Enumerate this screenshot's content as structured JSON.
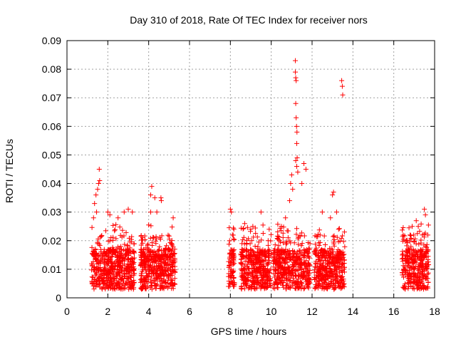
{
  "chart_data": {
    "type": "scatter",
    "title": "Day 310 of 2018, Rate Of TEC Index for receiver nors",
    "xlabel": "GPS time / hours",
    "ylabel": "ROTI / TECUs",
    "xlim": [
      0,
      18
    ],
    "ylim": [
      0,
      0.09
    ],
    "xticks": [
      0,
      2,
      4,
      6,
      8,
      10,
      12,
      14,
      16,
      18
    ],
    "yticks": [
      0,
      0.01,
      0.02,
      0.03,
      0.04,
      0.05,
      0.06,
      0.07,
      0.08,
      0.09
    ],
    "grid": true,
    "marker": "+",
    "color": "#ff0000",
    "clusters": [
      {
        "x_range": [
          1.2,
          3.3
        ],
        "y_range": [
          0.002,
          0.045
        ]
      },
      {
        "x_range": [
          3.6,
          5.3
        ],
        "y_range": [
          0.002,
          0.039
        ]
      },
      {
        "x_range": [
          7.9,
          8.2
        ],
        "y_range": [
          0.004,
          0.031
        ]
      },
      {
        "x_range": [
          8.5,
          10.0
        ],
        "y_range": [
          0.002,
          0.03
        ]
      },
      {
        "x_range": [
          10.1,
          11.9
        ],
        "y_range": [
          0.003,
          0.083
        ]
      },
      {
        "x_range": [
          12.1,
          13.6
        ],
        "y_range": [
          0.003,
          0.076
        ]
      },
      {
        "x_range": [
          16.4,
          17.7
        ],
        "y_range": [
          0.001,
          0.031
        ]
      }
    ],
    "points": [
      [
        1.35,
        0.033
      ],
      [
        1.42,
        0.036
      ],
      [
        1.5,
        0.038
      ],
      [
        1.55,
        0.04
      ],
      [
        1.6,
        0.041
      ],
      [
        1.58,
        0.045
      ],
      [
        1.45,
        0.03
      ],
      [
        1.3,
        0.028
      ],
      [
        2.0,
        0.03
      ],
      [
        2.1,
        0.029
      ],
      [
        2.8,
        0.03
      ],
      [
        3.0,
        0.031
      ],
      [
        3.2,
        0.03
      ],
      [
        2.5,
        0.028
      ],
      [
        4.1,
        0.036
      ],
      [
        4.15,
        0.039
      ],
      [
        4.3,
        0.035
      ],
      [
        4.6,
        0.035
      ],
      [
        4.62,
        0.034
      ],
      [
        4.1,
        0.03
      ],
      [
        4.4,
        0.03
      ],
      [
        5.2,
        0.028
      ],
      [
        8.0,
        0.031
      ],
      [
        8.05,
        0.03
      ],
      [
        8.1,
        0.022
      ],
      [
        8.7,
        0.026
      ],
      [
        9.0,
        0.024
      ],
      [
        9.1,
        0.025
      ],
      [
        9.5,
        0.03
      ],
      [
        9.9,
        0.024
      ],
      [
        10.5,
        0.025
      ],
      [
        10.7,
        0.028
      ],
      [
        10.9,
        0.034
      ],
      [
        10.95,
        0.04
      ],
      [
        11.0,
        0.043
      ],
      [
        11.05,
        0.038
      ],
      [
        11.2,
        0.048
      ],
      [
        11.25,
        0.046
      ],
      [
        11.3,
        0.044
      ],
      [
        11.6,
        0.047
      ],
      [
        11.7,
        0.045
      ],
      [
        11.5,
        0.04
      ],
      [
        11.18,
        0.083
      ],
      [
        11.18,
        0.079
      ],
      [
        11.2,
        0.077
      ],
      [
        11.22,
        0.076
      ],
      [
        11.2,
        0.068
      ],
      [
        11.22,
        0.063
      ],
      [
        11.24,
        0.06
      ],
      [
        11.26,
        0.058
      ],
      [
        11.25,
        0.054
      ],
      [
        11.27,
        0.049
      ],
      [
        12.5,
        0.03
      ],
      [
        12.9,
        0.028
      ],
      [
        13.0,
        0.036
      ],
      [
        13.05,
        0.037
      ],
      [
        13.2,
        0.03
      ],
      [
        13.3,
        0.024
      ],
      [
        13.45,
        0.076
      ],
      [
        13.48,
        0.074
      ],
      [
        13.5,
        0.071
      ],
      [
        16.8,
        0.022
      ],
      [
        16.9,
        0.025
      ],
      [
        17.1,
        0.027
      ],
      [
        17.2,
        0.025
      ],
      [
        17.5,
        0.031
      ],
      [
        17.55,
        0.029
      ],
      [
        17.4,
        0.022
      ]
    ]
  }
}
